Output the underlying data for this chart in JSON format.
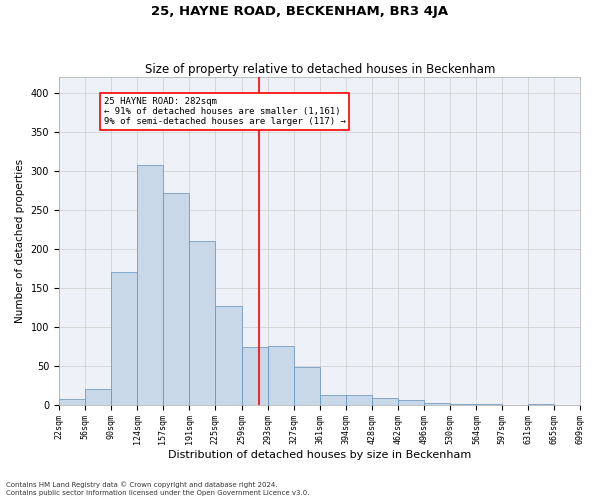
{
  "title": "25, HAYNE ROAD, BECKENHAM, BR3 4JA",
  "subtitle": "Size of property relative to detached houses in Beckenham",
  "xlabel": "Distribution of detached houses by size in Beckenham",
  "ylabel": "Number of detached properties",
  "footnote1": "Contains HM Land Registry data © Crown copyright and database right 2024.",
  "footnote2": "Contains public sector information licensed under the Open Government Licence v3.0.",
  "bar_color": "#c8d8e8",
  "bar_edge_color": "#6090b8",
  "background_color": "#eef2f8",
  "red_line_x": 282,
  "annotation_title": "25 HAYNE ROAD: 282sqm",
  "annotation_line1": "← 91% of detached houses are smaller (1,161)",
  "annotation_line2": "9% of semi-detached houses are larger (117) →",
  "bin_edges": [
    22,
    56,
    90,
    124,
    157,
    191,
    225,
    259,
    293,
    327,
    361,
    394,
    428,
    462,
    496,
    530,
    564,
    597,
    631,
    665,
    699
  ],
  "bin_heights": [
    7,
    20,
    170,
    308,
    272,
    210,
    127,
    74,
    75,
    48,
    13,
    13,
    8,
    6,
    2,
    1,
    1,
    0,
    1,
    0,
    1
  ],
  "tick_labels": [
    "22sqm",
    "56sqm",
    "90sqm",
    "124sqm",
    "157sqm",
    "191sqm",
    "225sqm",
    "259sqm",
    "293sqm",
    "327sqm",
    "361sqm",
    "394sqm",
    "428sqm",
    "462sqm",
    "496sqm",
    "530sqm",
    "564sqm",
    "597sqm",
    "631sqm",
    "665sqm",
    "699sqm"
  ],
  "ylim": [
    0,
    420
  ],
  "yticks": [
    0,
    50,
    100,
    150,
    200,
    250,
    300,
    350,
    400
  ],
  "title_fontsize": 9.5,
  "subtitle_fontsize": 8.5,
  "xlabel_fontsize": 8,
  "ylabel_fontsize": 7.5,
  "tick_fontsize": 6,
  "footnote_fontsize": 5,
  "grid_color": "#cccccc"
}
